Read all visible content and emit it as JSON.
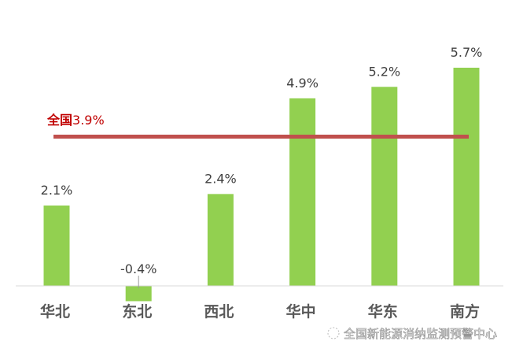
{
  "chart_data": {
    "type": "bar",
    "categories": [
      "华北",
      "东北",
      "西北",
      "华中",
      "华东",
      "南方"
    ],
    "values": [
      2.1,
      -0.4,
      2.4,
      4.9,
      5.2,
      5.7
    ],
    "value_labels": [
      "2.1%",
      "-0.4%",
      "2.4%",
      "4.9%",
      "5.2%",
      "5.7%"
    ],
    "reference_line": {
      "name": "全国",
      "value": 3.9,
      "label_name": "全国",
      "label_value": "3.9%",
      "color": "#c0504d"
    },
    "bar_color": "#92d050",
    "title": "",
    "xlabel": "",
    "ylabel": "",
    "grid": false,
    "unit": "%"
  },
  "watermark": {
    "text": "全国新能源消纳监测预警中心"
  }
}
